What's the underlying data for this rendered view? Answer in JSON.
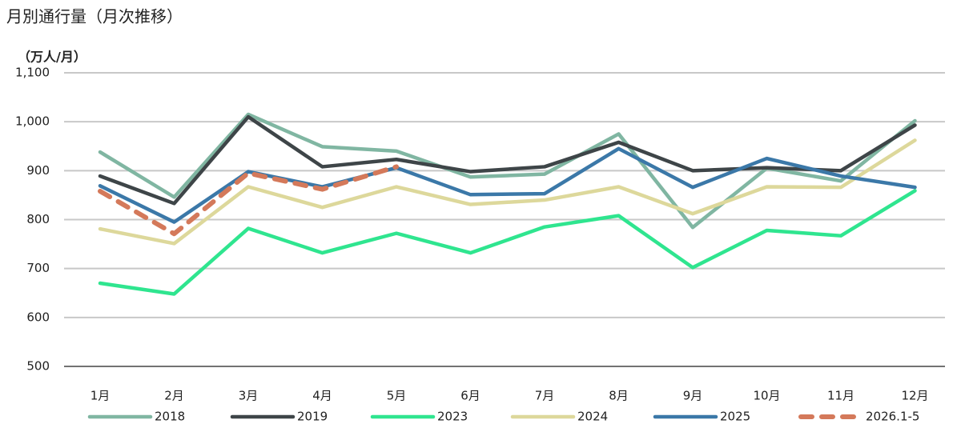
{
  "chart_data": {
    "type": "line",
    "title": "月別通行量（月次推移）",
    "y_label": "（万人/月）",
    "categories": [
      "1月",
      "2月",
      "3月",
      "4月",
      "5月",
      "6月",
      "7月",
      "8月",
      "9月",
      "10月",
      "11月",
      "12月"
    ],
    "series": [
      {
        "name": "2018",
        "color": "#80b6a2",
        "values": [
          938,
          846,
          1015,
          949,
          940,
          887,
          893,
          975,
          784,
          905,
          879,
          1002
        ]
      },
      {
        "name": "2019",
        "color": "#3e4548",
        "values": [
          889,
          833,
          1010,
          908,
          923,
          898,
          908,
          958,
          900,
          906,
          900,
          993
        ]
      },
      {
        "name": "2023",
        "color": "#2fe58f",
        "values": [
          670,
          648,
          782,
          732,
          772,
          732,
          785,
          808,
          702,
          778,
          767,
          859
        ]
      },
      {
        "name": "2024",
        "color": "#ddd89b",
        "values": [
          781,
          751,
          867,
          825,
          867,
          831,
          840,
          867,
          812,
          867,
          866,
          962
        ]
      },
      {
        "name": "2025",
        "color": "#3b78a8",
        "values": [
          869,
          795,
          898,
          867,
          906,
          851,
          853,
          945,
          866,
          925,
          889,
          866
        ]
      },
      {
        "name": "2026.1-5",
        "color": "#d4795a",
        "dashed": true,
        "values": [
          858,
          771,
          895,
          862,
          908,
          null,
          null,
          null,
          null,
          null,
          null,
          null
        ]
      }
    ],
    "ylim": [
      500,
      1100
    ],
    "yticks": [
      500,
      600,
      700,
      800,
      900,
      {
        "value": 1000,
        "label": "1,000"
      },
      {
        "value": 1100,
        "label": "1,100"
      }
    ],
    "grid": true,
    "legend": "bottom"
  }
}
